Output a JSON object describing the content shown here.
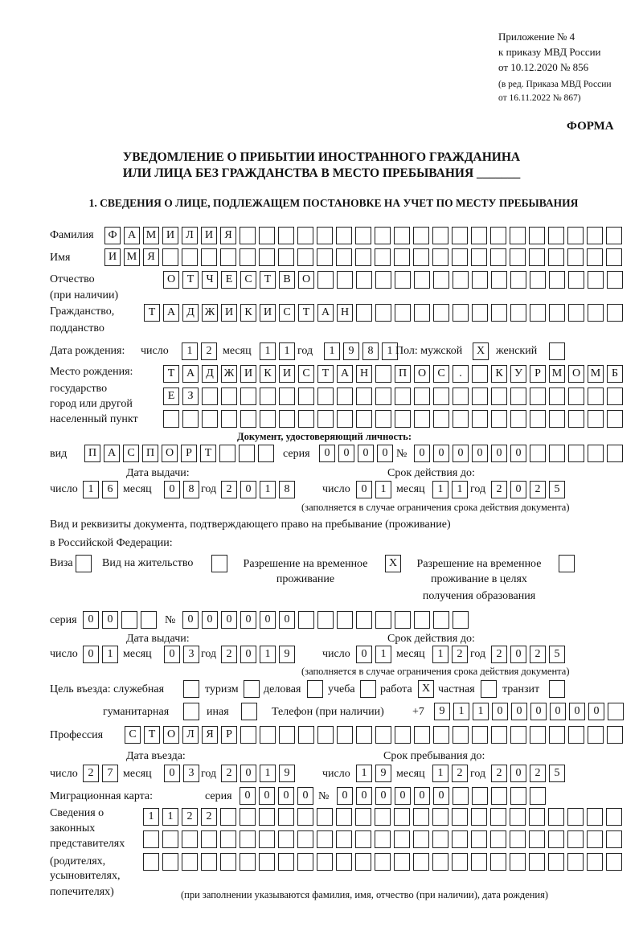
{
  "header": {
    "line1": "Приложение № 4",
    "line2": "к приказу МВД России",
    "line3": "от 10.12.2020 № 856",
    "line4": "(в ред. Приказа МВД России",
    "line5": "от 16.11.2022 № 867)",
    "form_label": "ФОРМА"
  },
  "title": {
    "line1": "УВЕДОМЛЕНИЕ О ПРИБЫТИИ ИНОСТРАННОГО ГРАЖДАНИНА",
    "line2": "ИЛИ ЛИЦА БЕЗ ГРАЖДАНСТВА В МЕСТО ПРЕБЫВАНИЯ _______"
  },
  "section1": {
    "heading": "1. СВЕДЕНИЯ О ЛИЦЕ, ПОДЛЕЖАЩЕМ ПОСТАНОВКЕ НА УЧЕТ ПО МЕСТУ ПРЕБЫВАНИЯ",
    "labels": {
      "surname": "Фамилия",
      "name": "Имя",
      "patronymic1": "Отчество",
      "patronymic2": "(при наличии)",
      "citizenship1": "Гражданство,",
      "citizenship2": "подданство",
      "birth_date": "Дата рождения:",
      "day": "число",
      "month": "месяц",
      "year": "год",
      "sex_male": "Пол: мужской",
      "sex_female": "женский",
      "pob1": "Место рождения:",
      "pob2": "государство",
      "pob3": "город или другой",
      "pob4": "населенный пункт",
      "id_doc": "Документ, удостоверяющий личность:",
      "kind": "вид",
      "series": "серия",
      "number": "№",
      "issue_date": "Дата выдачи:",
      "valid_until": "Срок действия до:",
      "valid_note": "(заполняется в случае ограничения срока действия документа)",
      "right_doc1": "Вид и реквизиты документа, подтверждающего право на пребывание (проживание)",
      "right_doc2": "в Российской Федерации:",
      "visa": "Виза",
      "residence": "Вид на жительство",
      "trp1": "Разрешение на временное",
      "trp2": "проживание",
      "trp_edu1": "Разрешение на временное",
      "trp_edu2": "проживание в целях",
      "trp_edu3": "получения образования",
      "purpose": "Цель въезда: служебная",
      "tourism": "туризм",
      "business": "деловая",
      "study": "учеба",
      "work": "работа",
      "private": "частная",
      "transit": "транзит",
      "humanitarian": "гуманитарная",
      "other": "иная",
      "phone": "Телефон (при наличии)",
      "phone_prefix": "+7",
      "profession": "Профессия",
      "entry_date": "Дата въезда:",
      "stay_until": "Срок пребывания до:",
      "migration_card": "Миграционная карта:",
      "reps1": "Сведения о",
      "reps2": "законных",
      "reps3": "представителях",
      "reps4": "(родителях,",
      "reps5": "усыновителях,",
      "reps6": "попечителях)",
      "reps_note": "(при заполнении указываются фамилия, имя, отчество (при наличии), дата рождения)"
    },
    "values": {
      "surname": "ФАМИЛИЯ",
      "name": "ИМЯ",
      "patronymic": "ОТЧЕСТВО",
      "citizenship": "ТАДЖИКИСТАН",
      "birth_day": "12",
      "birth_month": "11",
      "birth_year": "1981",
      "sex_male": "X",
      "sex_female": "",
      "pob_line1": "ТАДЖИКИСТАН ПОС. КУРМОМБ",
      "pob_line2": "ЕЗ",
      "pob_line3": "",
      "doc_kind": "ПАСПОРТ",
      "doc_series": "0000",
      "doc_number": "000000",
      "doc_issue_day": "16",
      "doc_issue_month": "08",
      "doc_issue_year": "2018",
      "doc_valid_day": "01",
      "doc_valid_month": "11",
      "doc_valid_year": "2025",
      "visa": "",
      "residence_permit": "",
      "temp_residence_permit": "X",
      "temp_residence_edu": "",
      "right_series": "00",
      "right_number": "000000",
      "right_issue_day": "01",
      "right_issue_month": "03",
      "right_issue_year": "2019",
      "right_valid_day": "01",
      "right_valid_month": "12",
      "right_valid_year": "2025",
      "purpose_official": "",
      "purpose_tourism": "",
      "purpose_business": "",
      "purpose_study": "",
      "purpose_work": "X",
      "purpose_private": "",
      "purpose_transit": "",
      "purpose_humanitarian": "",
      "purpose_other": "",
      "phone": "911000000",
      "profession": "СТОЛЯР",
      "entry_day": "27",
      "entry_month": "03",
      "entry_year": "2019",
      "stay_day": "19",
      "stay_month": "12",
      "stay_year": "2025",
      "mig_series": "0000",
      "mig_number": "000000",
      "reps_line1": "1122",
      "reps_line2": "",
      "reps_line3": ""
    }
  }
}
